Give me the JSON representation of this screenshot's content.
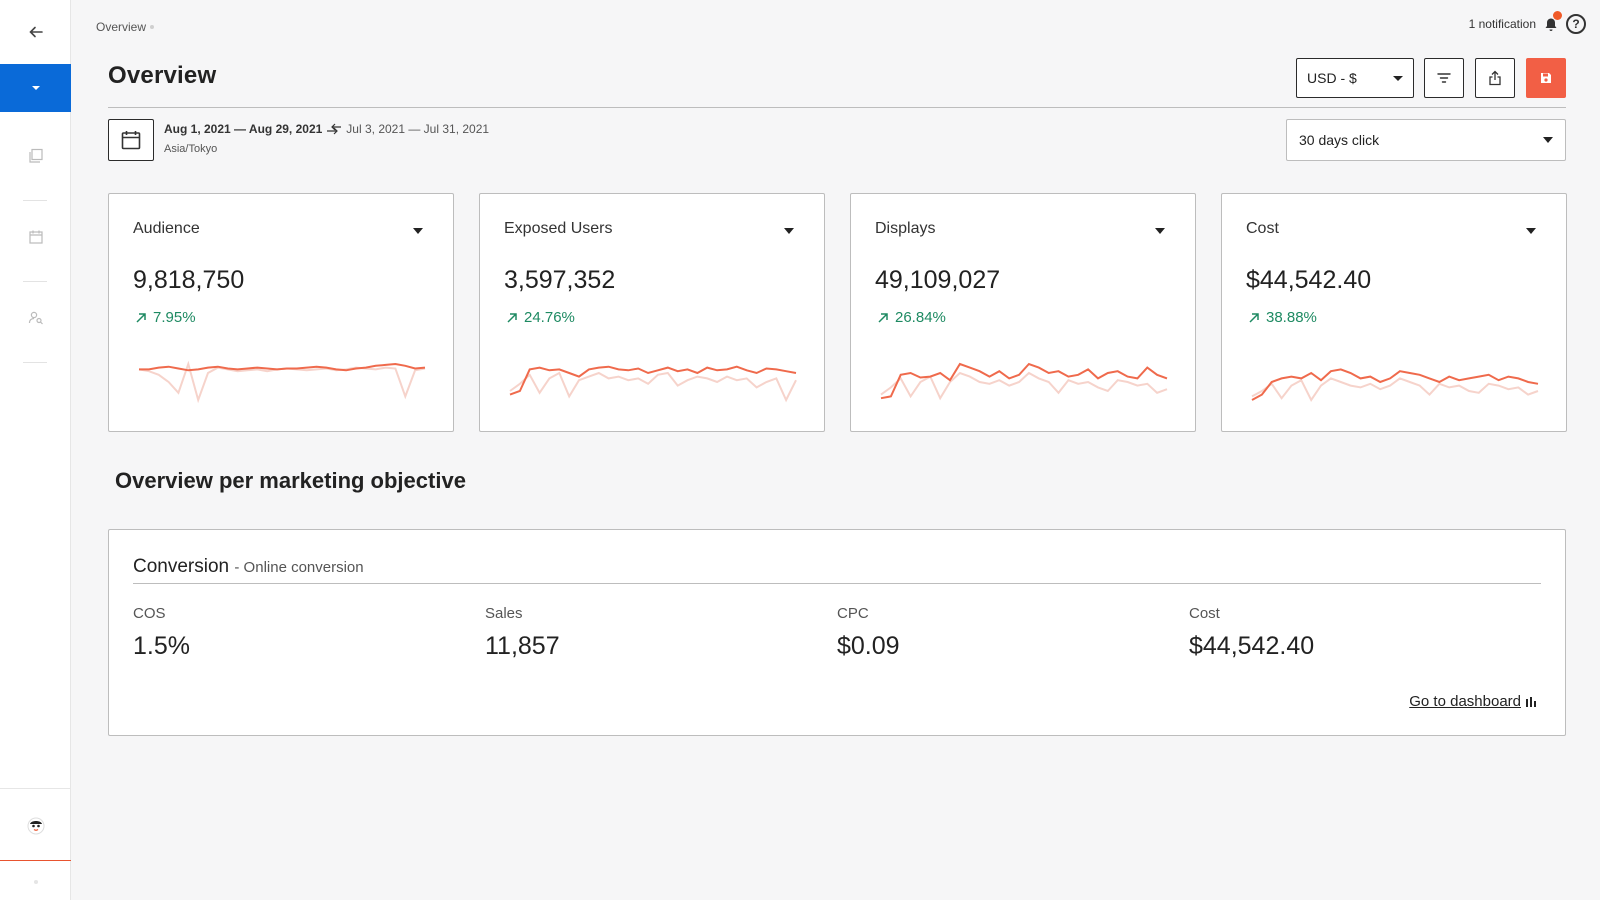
{
  "breadcrumb": {
    "current": "Overview"
  },
  "header": {
    "notification_text": "1 notification",
    "help_symbol": "?"
  },
  "page": {
    "title": "Overview"
  },
  "toolbar": {
    "currency_value": "USD - $",
    "filter_icon": "filter-icon",
    "export_icon": "export-icon",
    "save_icon": "save-icon"
  },
  "date": {
    "range": "Aug 1, 2021 — Aug 29, 2021",
    "compare_range": "Jul 3, 2021 — Jul 31, 2021",
    "timezone": "Asia/Tokyo"
  },
  "attribution": {
    "value": "30 days click"
  },
  "kpis": [
    {
      "label": "Audience",
      "value": "9,818,750",
      "delta": "7.95%"
    },
    {
      "label": "Exposed Users",
      "value": "3,597,352",
      "delta": "24.76%"
    },
    {
      "label": "Displays",
      "value": "49,109,027",
      "delta": "26.84%"
    },
    {
      "label": "Cost",
      "value": "$44,542.40",
      "delta": "38.88%"
    }
  ],
  "sparklines": {
    "current": [
      [
        46,
        46,
        44,
        43,
        45,
        47,
        46,
        44,
        43,
        45,
        46,
        45,
        44,
        45,
        46,
        45,
        45,
        44,
        43,
        44,
        46,
        47,
        45,
        44,
        42,
        41,
        40,
        42,
        45,
        44
      ],
      [
        74,
        70,
        46,
        44,
        47,
        46,
        50,
        54,
        46,
        44,
        43,
        46,
        47,
        45,
        50,
        47,
        44,
        48,
        46,
        50,
        44,
        47,
        46,
        43,
        47,
        50,
        45,
        46,
        48,
        50
      ],
      [
        78,
        76,
        52,
        50,
        55,
        54,
        50,
        58,
        40,
        44,
        48,
        54,
        48,
        56,
        52,
        40,
        44,
        50,
        48,
        54,
        52,
        46,
        56,
        50,
        48,
        54,
        56,
        44,
        52,
        56
      ],
      [
        80,
        74,
        60,
        56,
        54,
        56,
        50,
        58,
        48,
        46,
        50,
        56,
        54,
        60,
        56,
        48,
        50,
        52,
        56,
        60,
        54,
        58,
        56,
        54,
        52,
        58,
        54,
        56,
        60,
        62
      ]
    ],
    "previous": [
      [
        46,
        48,
        52,
        60,
        72,
        40,
        80,
        50,
        44,
        46,
        48,
        47,
        46,
        48,
        46,
        45,
        46,
        47,
        46,
        45,
        47,
        46,
        44,
        45,
        46,
        44,
        45,
        76,
        47,
        45
      ],
      [
        70,
        62,
        52,
        72,
        56,
        50,
        76,
        58,
        54,
        50,
        56,
        54,
        58,
        56,
        62,
        52,
        50,
        64,
        58,
        54,
        56,
        60,
        54,
        58,
        56,
        66,
        60,
        56,
        80,
        58
      ],
      [
        74,
        66,
        56,
        76,
        60,
        54,
        78,
        60,
        50,
        54,
        60,
        62,
        58,
        64,
        60,
        50,
        56,
        60,
        72,
        58,
        62,
        60,
        66,
        70,
        58,
        60,
        64,
        62,
        72,
        68
      ],
      [
        76,
        70,
        62,
        78,
        64,
        58,
        80,
        64,
        56,
        60,
        64,
        66,
        62,
        68,
        64,
        56,
        60,
        64,
        74,
        62,
        66,
        64,
        70,
        72,
        62,
        64,
        68,
        66,
        74,
        70
      ]
    ]
  },
  "section": {
    "title": "Overview per marketing objective"
  },
  "objective": {
    "title": "Conversion",
    "subtitle": "- Online conversion",
    "metrics": [
      {
        "label": "COS",
        "value": "1.5%"
      },
      {
        "label": "Sales",
        "value": "11,857"
      },
      {
        "label": "CPC",
        "value": "$0.09"
      },
      {
        "label": "Cost",
        "value": "$44,542.40"
      }
    ],
    "link": "Go to dashboard"
  },
  "colors": {
    "accent_blue": "#0a6ad8",
    "save_red": "#f25f45",
    "positive_green": "#1e8a62",
    "spark_current": "#ef6a4c",
    "spark_previous": "#f6d3cb"
  }
}
